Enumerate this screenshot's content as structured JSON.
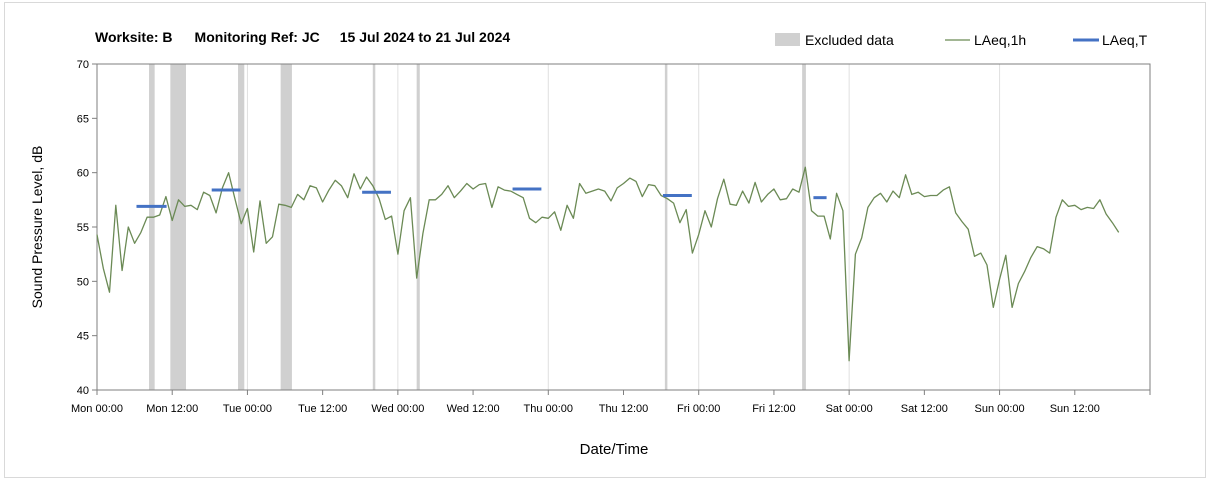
{
  "chart_data": {
    "type": "line",
    "title": {
      "worksite": "Worksite: B",
      "monitoring_ref": "Monitoring Ref: JC",
      "date_range": "15 Jul 2024 to 21 Jul 2024"
    },
    "xlabel": "Date/Time",
    "ylabel": "Sound Pressure Level, dB",
    "xlim_hours": [
      0,
      168
    ],
    "ylim": [
      40,
      70
    ],
    "yticks": [
      40,
      45,
      50,
      55,
      60,
      65,
      70
    ],
    "x_ticks": [
      {
        "h": 0,
        "label": "Mon 00:00"
      },
      {
        "h": 12,
        "label": "Mon 12:00"
      },
      {
        "h": 24,
        "label": "Tue 00:00"
      },
      {
        "h": 36,
        "label": "Tue 12:00"
      },
      {
        "h": 48,
        "label": "Wed 00:00"
      },
      {
        "h": 60,
        "label": "Wed 12:00"
      },
      {
        "h": 72,
        "label": "Thu 00:00"
      },
      {
        "h": 84,
        "label": "Thu 12:00"
      },
      {
        "h": 96,
        "label": "Fri 00:00"
      },
      {
        "h": 108,
        "label": "Fri 12:00"
      },
      {
        "h": 120,
        "label": "Sat 00:00"
      },
      {
        "h": 132,
        "label": "Sat 12:00"
      },
      {
        "h": 144,
        "label": "Sun 00:00"
      },
      {
        "h": 156,
        "label": "Sun 12:00"
      }
    ],
    "vertical_gridlines": [
      24,
      48,
      72,
      96,
      120,
      144
    ],
    "legend": {
      "placement": "top-right",
      "items": [
        {
          "key": "excluded",
          "label": "Excluded data"
        },
        {
          "key": "laeq1h",
          "label": "LAeq,1h"
        },
        {
          "key": "laeqT",
          "label": "LAeq,T"
        }
      ]
    },
    "colors": {
      "excluded": "#d0d0d0",
      "laeq1h": "#6b8a55",
      "laeqT": "#4472c4"
    },
    "excluded_ranges_hours": [
      [
        8.3,
        9.2
      ],
      [
        11.7,
        14.2
      ],
      [
        22.5,
        23.5
      ],
      [
        29.3,
        31.1
      ],
      [
        44.0,
        44.4
      ],
      [
        51.0,
        51.5
      ],
      [
        90.6,
        91.0
      ],
      [
        112.5,
        113.1
      ]
    ],
    "laeq_1h": {
      "name": "LAeq,1h",
      "start_hour": 0,
      "values": [
        54.3,
        51.2,
        49.0,
        57.0,
        51.0,
        55.0,
        53.5,
        54.5,
        55.9,
        55.9,
        56.1,
        57.8,
        55.6,
        57.5,
        56.9,
        57.0,
        56.6,
        58.2,
        57.9,
        56.3,
        58.6,
        60.0,
        57.6,
        55.3,
        56.7,
        52.7,
        57.4,
        53.5,
        54.1,
        57.1,
        57.0,
        56.8,
        58.0,
        57.5,
        58.8,
        58.6,
        57.3,
        58.4,
        59.3,
        58.8,
        57.7,
        59.9,
        58.5,
        59.6,
        58.8,
        57.6,
        55.7,
        56.0,
        52.5,
        56.5,
        57.7,
        50.3,
        54.4,
        57.5,
        57.5,
        58.0,
        58.8,
        57.7,
        58.3,
        59.0,
        58.5,
        58.9,
        59.0,
        56.8,
        58.7,
        58.4,
        58.3,
        58.0,
        57.7,
        55.8,
        55.4,
        55.9,
        55.8,
        56.4,
        54.7,
        57.0,
        55.8,
        59.0,
        58.1,
        58.3,
        58.5,
        58.3,
        57.4,
        58.6,
        59.0,
        59.5,
        59.2,
        57.8,
        58.9,
        58.8,
        57.9,
        57.6,
        57.2,
        55.4,
        56.6,
        52.6,
        54.3,
        56.5,
        55.0,
        57.6,
        59.4,
        57.1,
        57.0,
        58.3,
        57.2,
        59.1,
        57.3,
        58.0,
        58.5,
        57.5,
        57.6,
        58.5,
        58.2,
        60.5,
        56.5,
        56.0,
        56.0,
        53.9,
        58.1,
        56.5,
        42.7,
        52.5,
        54.0,
        56.8,
        57.7,
        58.1,
        57.3,
        58.3,
        57.7,
        59.8,
        58.0,
        58.2,
        57.8,
        57.9,
        57.9,
        58.4,
        58.7,
        56.3,
        55.5,
        54.8,
        52.3,
        52.6,
        51.5,
        47.6,
        50.2,
        52.4,
        47.6,
        49.8,
        50.9,
        52.2,
        53.2,
        53.0,
        52.6,
        55.9,
        57.5,
        56.9,
        57.0,
        56.6,
        56.8,
        56.7,
        57.5,
        56.2,
        55.4,
        54.5
      ]
    },
    "laeq_T": [
      {
        "start": 6.3,
        "end": 11.1,
        "value": 56.9
      },
      {
        "start": 18.3,
        "end": 22.9,
        "value": 58.4
      },
      {
        "start": 42.3,
        "end": 46.9,
        "value": 58.2
      },
      {
        "start": 66.3,
        "end": 70.9,
        "value": 58.5
      },
      {
        "start": 90.3,
        "end": 94.9,
        "value": 57.9
      },
      {
        "start": 114.3,
        "end": 116.4,
        "value": 57.7
      }
    ]
  }
}
